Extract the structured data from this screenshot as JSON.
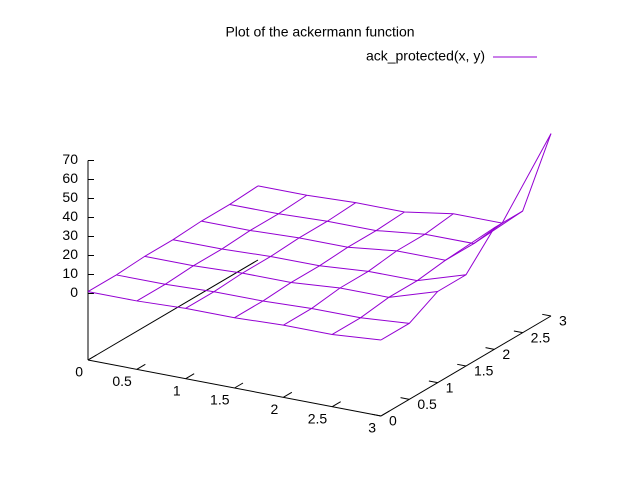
{
  "chart_data": {
    "type": "surface",
    "title": "Plot of the ackermann function",
    "x": [
      0,
      0.5,
      1,
      1.5,
      2,
      2.5,
      3
    ],
    "y": [
      0,
      0.5,
      1,
      1.5,
      2,
      2.5,
      3
    ],
    "series": [
      {
        "name": "ack_protected(x, y)",
        "color": "#9400d3",
        "values": [
          [
            1,
            1,
            2,
            2,
            3,
            3,
            5
          ],
          [
            1,
            1,
            2,
            2,
            3,
            3,
            5
          ],
          [
            2,
            2,
            3,
            3,
            5,
            5,
            13
          ],
          [
            2,
            2,
            3,
            3,
            5,
            5,
            13
          ],
          [
            3,
            3,
            4,
            4,
            7,
            7,
            29
          ],
          [
            3,
            3,
            4,
            4,
            7,
            7,
            29
          ],
          [
            4,
            4,
            5,
            5,
            9,
            9,
            61
          ]
        ]
      }
    ],
    "xlim": [
      0,
      3
    ],
    "ylim": [
      0,
      3
    ],
    "zlim": [
      0,
      70
    ],
    "xticks": [
      0,
      0.5,
      1,
      1.5,
      2,
      2.5,
      3
    ],
    "yticks": [
      0,
      0.5,
      1,
      1.5,
      2,
      2.5,
      3
    ],
    "zticks": [
      0,
      10,
      20,
      30,
      40,
      50,
      60,
      70
    ]
  }
}
